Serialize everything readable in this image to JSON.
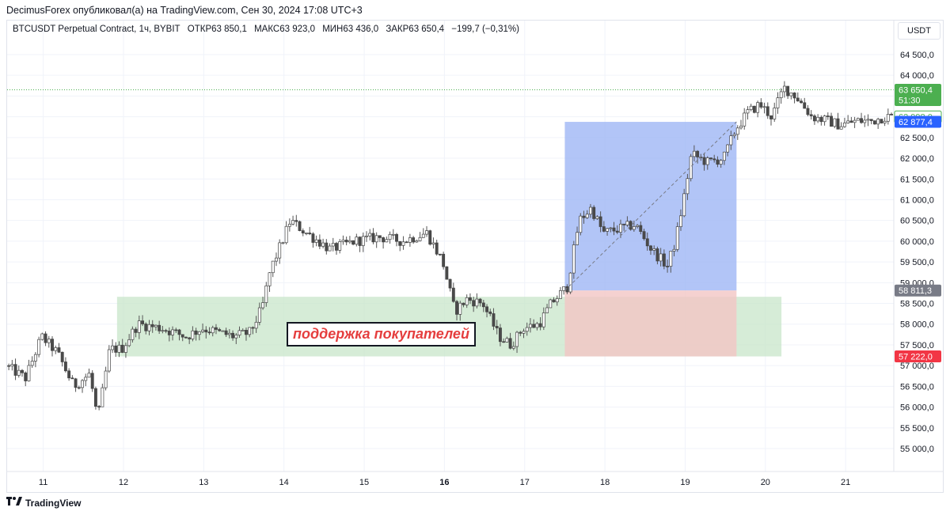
{
  "header": {
    "text": "DecimusForex опубликовал(а) на TradingView.com, Сен 30, 2024 17:08 UTC+3"
  },
  "legend": {
    "symbol": "BTCUSDT Perpetual Contract, 1ч, BYBIT",
    "open": "ОТКР63 850,1",
    "high": "МАКС63 923,0",
    "low": "МИН63 436,0",
    "close": "ЗАКР63 650,4",
    "change": "−199,7 (−0,31%)"
  },
  "currency": "USDT",
  "annotation": "поддержка покупателей",
  "footer": {
    "brand": "TradingView"
  },
  "colors": {
    "up": "#ffffff",
    "down": "#4a4a4a",
    "wick": "#555555",
    "support_zone": "#c8e6c9",
    "target_zone": "#9fb7f5",
    "stop_zone": "#f2c6c4",
    "last_price": "#4caf50",
    "marker_blue": "#2962ff",
    "marker_red": "#f23645",
    "marker_gray": "#787b86",
    "annotation_text": "#e53e3e"
  },
  "chart_data": {
    "type": "candlestick",
    "ylim": [
      54600,
      64900
    ],
    "x_range": [
      10.55,
      21.6
    ],
    "y_ticks": [
      {
        "v": 55000,
        "label": "55 000,0"
      },
      {
        "v": 55500,
        "label": "55 500,0"
      },
      {
        "v": 56000,
        "label": "56 000,0"
      },
      {
        "v": 56500,
        "label": "56 500,0"
      },
      {
        "v": 57000,
        "label": "57 000,0"
      },
      {
        "v": 57500,
        "label": "57 500,0"
      },
      {
        "v": 58000,
        "label": "58 000,0"
      },
      {
        "v": 58500,
        "label": "58 500,0"
      },
      {
        "v": 59000,
        "label": "59 000,0"
      },
      {
        "v": 59500,
        "label": "59 500,0"
      },
      {
        "v": 60000,
        "label": "60 000,0"
      },
      {
        "v": 60500,
        "label": "60 500,0"
      },
      {
        "v": 61000,
        "label": "61 000,0"
      },
      {
        "v": 61500,
        "label": "61 500,0"
      },
      {
        "v": 62000,
        "label": "62 000,0"
      },
      {
        "v": 62500,
        "label": "62 500,0"
      },
      {
        "v": 63000,
        "label": "63 000,0"
      },
      {
        "v": 63500,
        "label": "63 500,0"
      },
      {
        "v": 64000,
        "label": "64 000,0"
      },
      {
        "v": 64500,
        "label": "64 500,0"
      }
    ],
    "x_ticks": [
      {
        "v": 11,
        "label": "11",
        "bold": false
      },
      {
        "v": 12,
        "label": "12",
        "bold": false
      },
      {
        "v": 13,
        "label": "13",
        "bold": false
      },
      {
        "v": 14,
        "label": "14",
        "bold": false
      },
      {
        "v": 15,
        "label": "15",
        "bold": false
      },
      {
        "v": 16,
        "label": "16",
        "bold": true
      },
      {
        "v": 17,
        "label": "17",
        "bold": false
      },
      {
        "v": 18,
        "label": "18",
        "bold": false
      },
      {
        "v": 19,
        "label": "19",
        "bold": false
      },
      {
        "v": 20,
        "label": "20",
        "bold": false
      },
      {
        "v": 21,
        "label": "21",
        "bold": false
      }
    ],
    "price_anchors": [
      [
        10.55,
        57000
      ],
      [
        10.8,
        56700
      ],
      [
        11.0,
        57700
      ],
      [
        11.2,
        57300
      ],
      [
        11.4,
        56500
      ],
      [
        11.6,
        56800
      ],
      [
        11.7,
        55700
      ],
      [
        11.85,
        57400
      ],
      [
        12.0,
        57400
      ],
      [
        12.2,
        58000
      ],
      [
        12.5,
        57900
      ],
      [
        12.8,
        57700
      ],
      [
        13.0,
        57900
      ],
      [
        13.2,
        57800
      ],
      [
        13.4,
        57700
      ],
      [
        13.6,
        57800
      ],
      [
        13.75,
        58400
      ],
      [
        13.85,
        59300
      ],
      [
        14.0,
        60000
      ],
      [
        14.1,
        60500
      ],
      [
        14.3,
        60200
      ],
      [
        14.6,
        59800
      ],
      [
        14.9,
        60000
      ],
      [
        15.2,
        60100
      ],
      [
        15.5,
        60000
      ],
      [
        15.8,
        60200
      ],
      [
        16.0,
        59500
      ],
      [
        16.15,
        58300
      ],
      [
        16.3,
        58600
      ],
      [
        16.5,
        58500
      ],
      [
        16.7,
        57700
      ],
      [
        16.85,
        57500
      ],
      [
        17.0,
        57900
      ],
      [
        17.2,
        58000
      ],
      [
        17.35,
        58500
      ],
      [
        17.55,
        58900
      ],
      [
        17.7,
        60500
      ],
      [
        17.85,
        60800
      ],
      [
        18.0,
        60200
      ],
      [
        18.2,
        60300
      ],
      [
        18.4,
        60400
      ],
      [
        18.6,
        59800
      ],
      [
        18.8,
        59400
      ],
      [
        18.9,
        60000
      ],
      [
        19.0,
        61000
      ],
      [
        19.1,
        62100
      ],
      [
        19.3,
        61900
      ],
      [
        19.5,
        62000
      ],
      [
        19.65,
        62700
      ],
      [
        19.8,
        63100
      ],
      [
        19.95,
        63300
      ],
      [
        20.1,
        63000
      ],
      [
        20.25,
        63700
      ],
      [
        20.4,
        63500
      ],
      [
        20.6,
        63000
      ],
      [
        20.8,
        62900
      ],
      [
        20.95,
        62800
      ],
      [
        21.15,
        62900
      ],
      [
        21.35,
        62900
      ],
      [
        21.5,
        63000
      ]
    ],
    "support_zone": {
      "x0": 11.92,
      "x1": 20.2,
      "y0": 57222,
      "y1": 58660
    },
    "position": {
      "x0": 17.5,
      "x1": 19.64,
      "entry": 58811.3,
      "target": 62877.4,
      "stop": 57222
    },
    "trend_line": {
      "x0": 17.5,
      "y0": 58811.3,
      "x1": 19.64,
      "y1": 62877.4
    },
    "last_price_line": 63650.4,
    "price_markers": [
      {
        "id": "last-price",
        "v": 63650.4,
        "label": "63 650,4",
        "sub": "51:30",
        "style": "green"
      },
      {
        "id": "marker-62998",
        "v": 62998.0,
        "label": "62 998,0",
        "style": "green-outline"
      },
      {
        "id": "target-marker",
        "v": 62877.4,
        "label": "62 877,4",
        "style": "blue"
      },
      {
        "id": "entry-marker",
        "v": 58811.3,
        "label": "58 811,3",
        "style": "gray"
      },
      {
        "id": "stop-marker",
        "v": 57222.0,
        "label": "57 222,0",
        "style": "red"
      }
    ]
  }
}
